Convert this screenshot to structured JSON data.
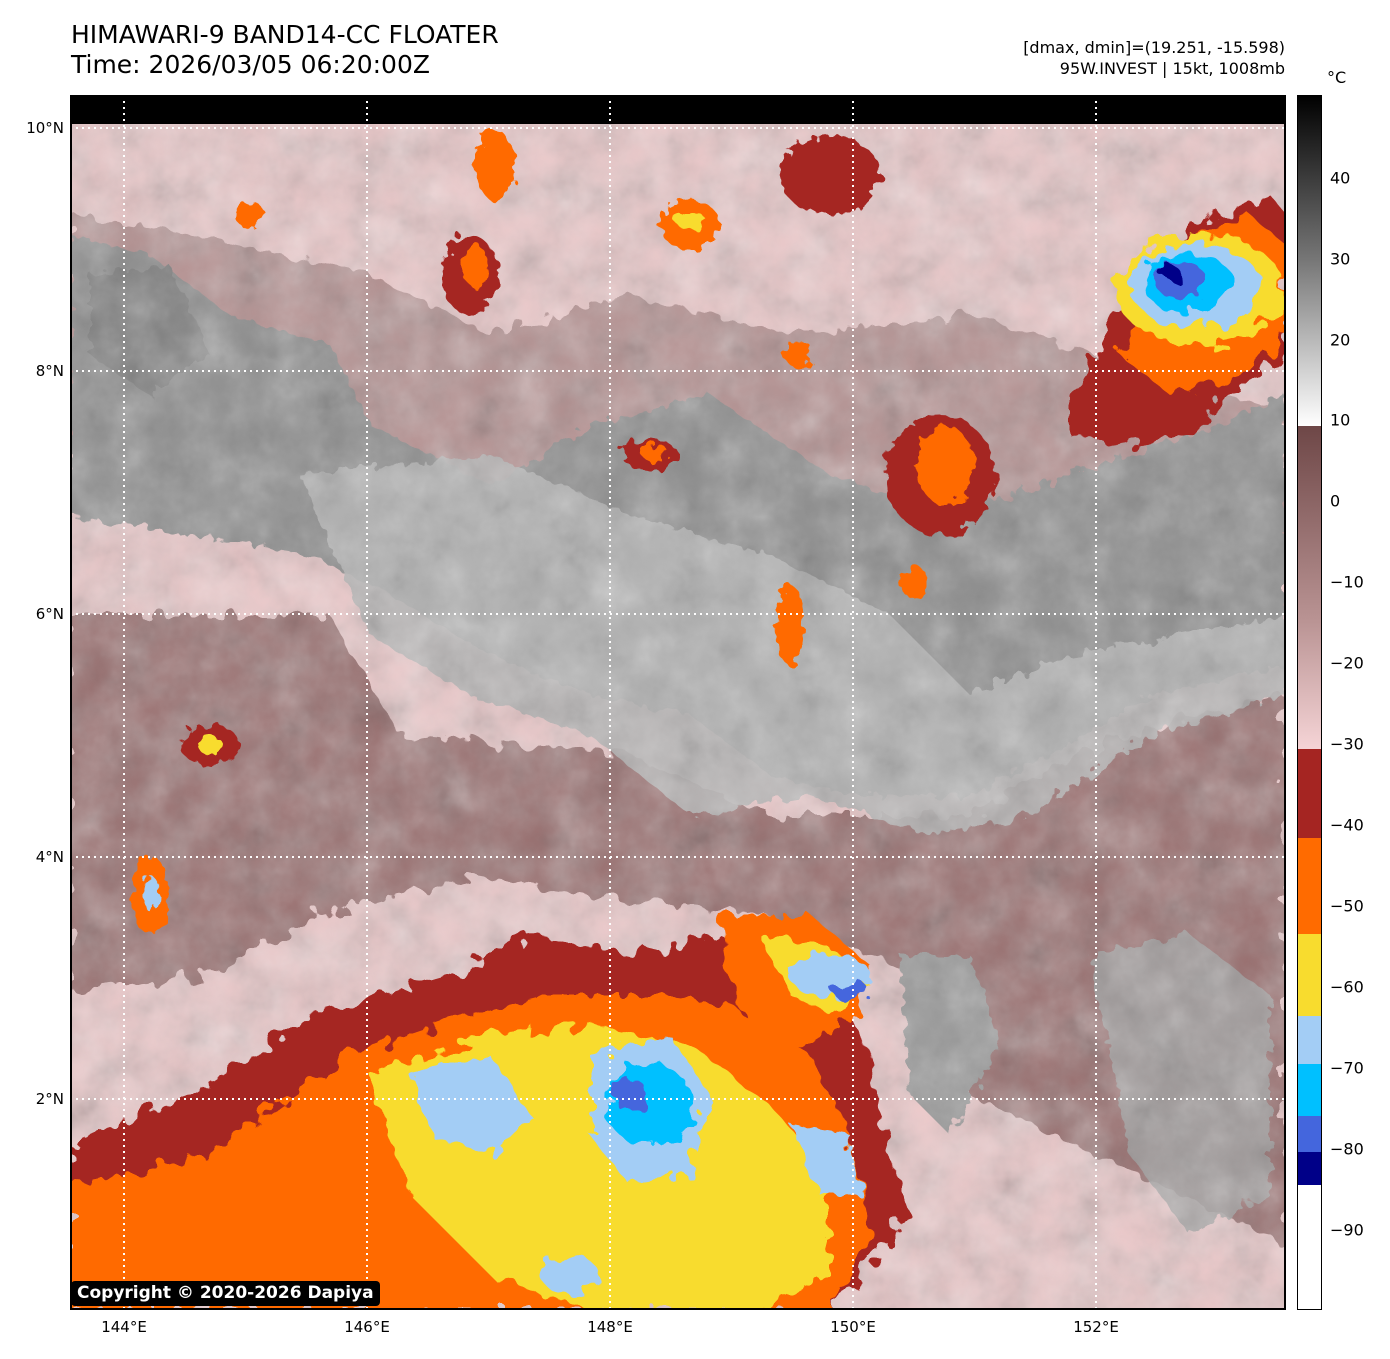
{
  "header": {
    "title_line1": "HIMAWARI-9 BAND14-CC FLOATER",
    "title_line2": "Time: 2026/03/05 06:20:00Z",
    "dmax_dmin": "[dmax, dmin]=(19.251, -15.598)",
    "storm_info": "95W.INVEST | 15kt, 1008mb"
  },
  "map": {
    "lat_ticks": [
      "10°N",
      "8°N",
      "6°N",
      "4°N",
      "2°N"
    ],
    "lon_ticks": [
      "144°E",
      "146°E",
      "148°E",
      "150°E",
      "152°E"
    ],
    "gridlines": "dotted-white",
    "features": [
      {
        "name": "convective-cluster",
        "lat": 8.9,
        "lon": 152.6,
        "min_temp_c": -85
      },
      {
        "name": "convective-cluster",
        "lat": 1.9,
        "lon": 148.0,
        "min_temp_c": -80
      },
      {
        "name": "convective-cluster",
        "lat": 2.8,
        "lon": 150.1,
        "min_temp_c": -80
      },
      {
        "name": "convective-band",
        "lat": 1.0,
        "lon": 146.0,
        "min_temp_c": -70
      }
    ]
  },
  "colorbar": {
    "unit": "°C",
    "tick_labels": [
      "40",
      "30",
      "20",
      "10",
      "0",
      "−10",
      "−20",
      "−30",
      "−40",
      "−50",
      "−60",
      "−70",
      "−80",
      "−90"
    ],
    "range": [
      -100,
      50
    ],
    "colors": {
      "black": "#000000",
      "white": "#ffffff",
      "pink": "#f5d4d6",
      "mauve": "#9a7070",
      "dark_red": "#a52522",
      "orange": "#ff6b00",
      "yellow": "#f8dc2e",
      "light_blue": "#a3cdf5",
      "cyan": "#00c0ff",
      "blue": "#4466dd",
      "navy": "#000088"
    }
  },
  "footer": {
    "copyright": "Copyright © 2020-2026 Dapiya"
  }
}
